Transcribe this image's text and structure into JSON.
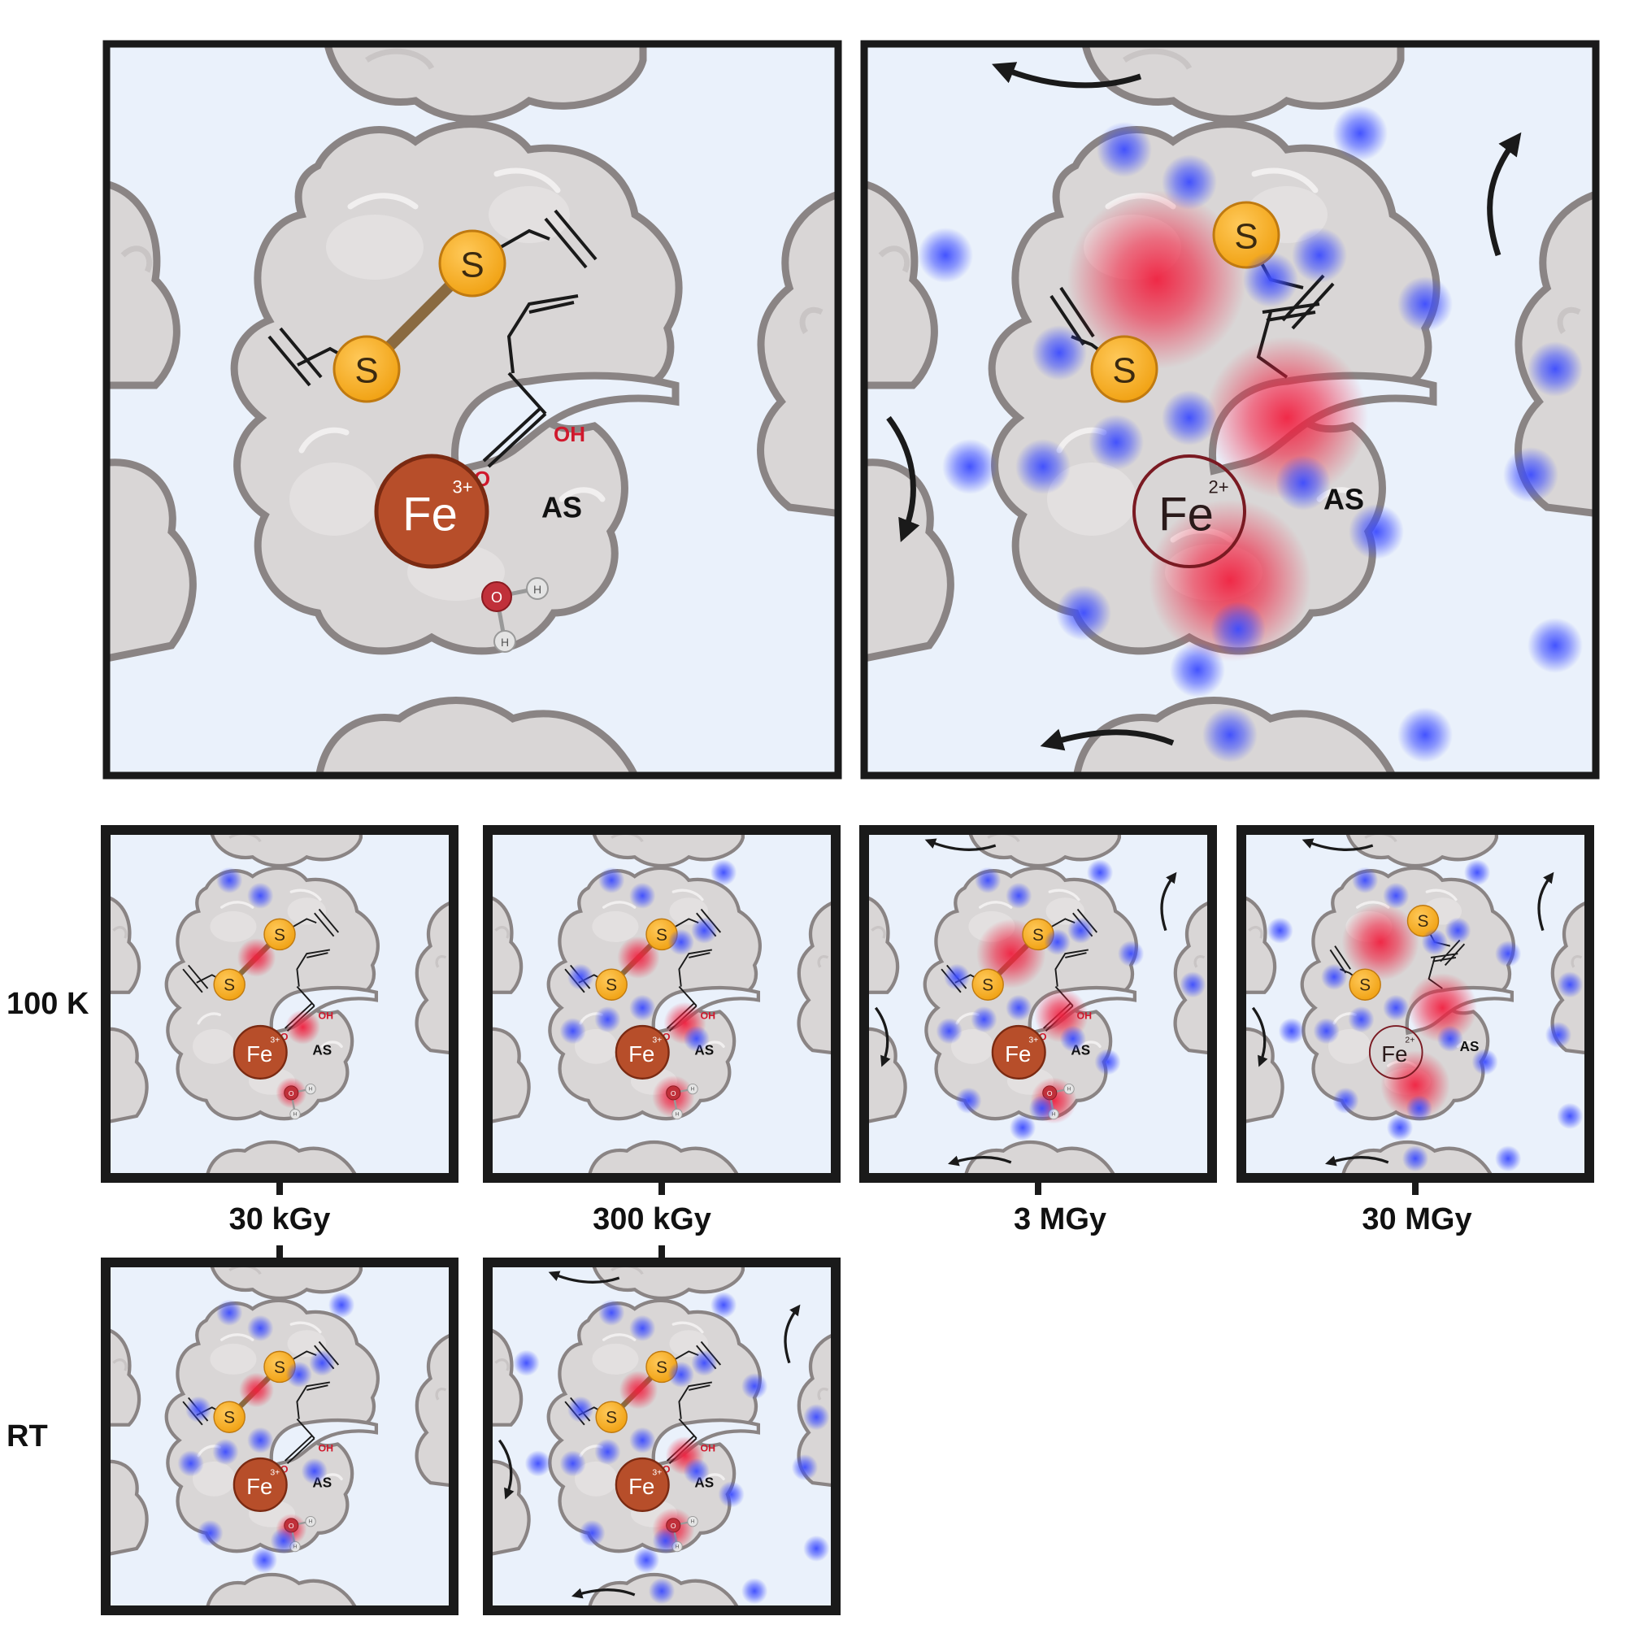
{
  "rows": {
    "row_100k": "100 K",
    "row_rt": "RT"
  },
  "doses": {
    "d1": "30 kGy",
    "d2": "300 kGy",
    "d3": "3 MGy",
    "d4": "30 MGy"
  },
  "scene": {
    "sulfur": "S",
    "iron": "Fe",
    "charge_ferric": "3+",
    "charge_ferrous": "2+",
    "active_site": "AS",
    "carboxyl_oh": "OH",
    "carboxyl_o": "O",
    "water_o": "O",
    "water_h": "H"
  },
  "colors": {
    "background": "#eaf1fb",
    "protein_fill": "#d9d6d6",
    "protein_stroke": "#8a8484",
    "iron": "#b74e2a",
    "sulfur": "#f2a21f",
    "damage": "#f0203f",
    "radical": "#3b4bff"
  },
  "panels": [
    {
      "id": "ideal",
      "state": "undamaged",
      "blue_spots": 0,
      "red_sites": []
    },
    {
      "id": "damaged-reference",
      "state": "heavily damaged",
      "iron_reduced": true,
      "disulfide_broken": true,
      "decarboxylated": true
    },
    {
      "id": "100k-30kgy",
      "dose": "30 kGy",
      "temperature": "100 K"
    },
    {
      "id": "100k-300kgy",
      "dose": "300 kGy",
      "temperature": "100 K"
    },
    {
      "id": "100k-3mgy",
      "dose": "3 MGy",
      "temperature": "100 K"
    },
    {
      "id": "100k-30mgy",
      "dose": "30 MGy",
      "temperature": "100 K"
    },
    {
      "id": "rt-30kgy",
      "dose": "30 kGy",
      "temperature": "RT"
    },
    {
      "id": "rt-300kgy",
      "dose": "300 kGy",
      "temperature": "RT"
    }
  ]
}
